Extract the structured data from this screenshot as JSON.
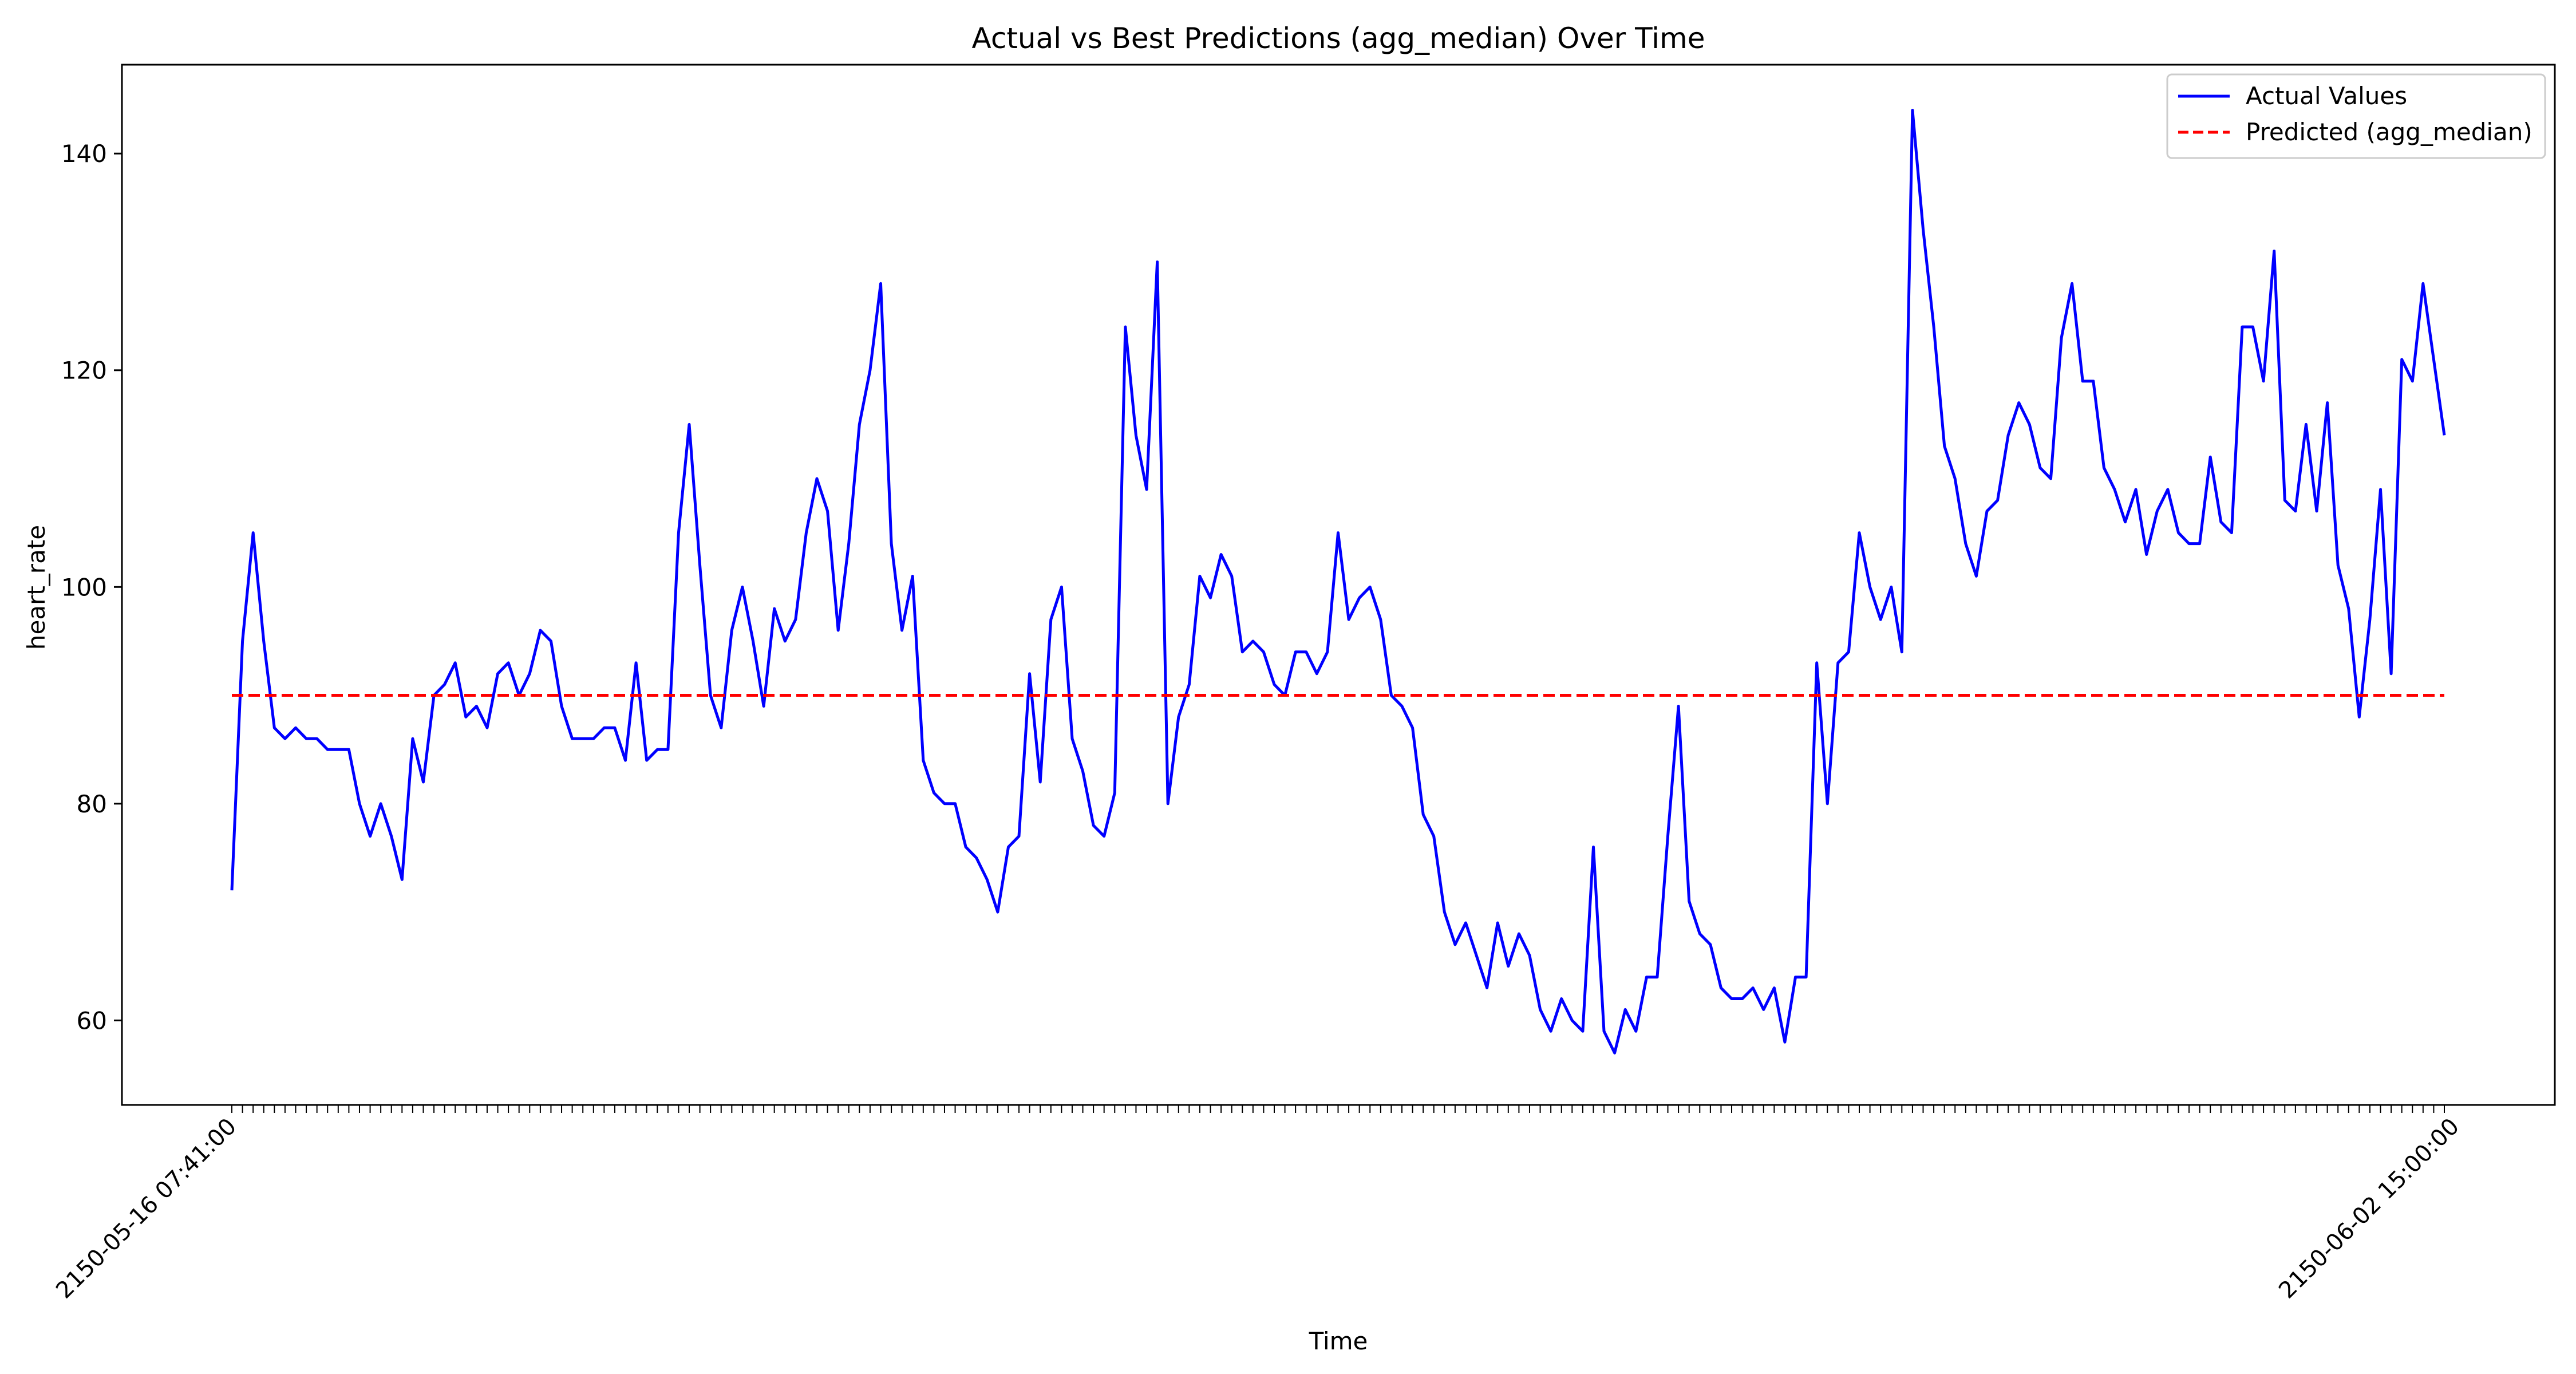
{
  "chart_data": {
    "type": "line",
    "title": "Actual vs Best Predictions (agg_median) Over Time",
    "xlabel": "Time",
    "ylabel": "heart_rate",
    "ylim": [
      52.2,
      148.2
    ],
    "yticks": [
      60,
      80,
      100,
      120,
      140
    ],
    "x_tick_labels_visible": {
      "first": "2150-05-16 07:41:00",
      "last": "2150-06-02 15:00:00"
    },
    "legend_position": "top-right",
    "grid": false,
    "series": [
      {
        "name": "Actual Values",
        "color": "#0000ff",
        "style": "solid",
        "values": [
          72,
          95,
          105,
          95,
          87,
          86,
          87,
          86,
          86,
          85,
          85,
          85,
          80,
          77,
          80,
          77,
          73,
          86,
          82,
          90,
          91,
          93,
          88,
          89,
          87,
          92,
          93,
          90,
          92,
          96,
          95,
          89,
          86,
          86,
          86,
          87,
          87,
          84,
          93,
          84,
          85,
          85,
          105,
          115,
          102,
          90,
          87,
          96,
          100,
          95,
          89,
          98,
          95,
          97,
          105,
          110,
          107,
          96,
          104,
          115,
          120,
          128,
          104,
          96,
          101,
          84,
          81,
          80,
          80,
          76,
          75,
          73,
          70,
          76,
          77,
          92,
          82,
          97,
          100,
          86,
          83,
          78,
          77,
          81,
          124,
          114,
          109,
          130,
          80,
          88,
          91,
          101,
          99,
          103,
          101,
          94,
          95,
          94,
          91,
          90,
          94,
          94,
          92,
          94,
          105,
          97,
          99,
          100,
          97,
          90,
          89,
          87,
          79,
          77,
          70,
          67,
          69,
          66,
          63,
          69,
          65,
          68,
          66,
          61,
          59,
          62,
          60,
          59,
          76,
          59,
          57,
          61,
          59,
          64,
          64,
          77,
          89,
          71,
          68,
          67,
          63,
          62,
          62,
          63,
          61,
          63,
          58,
          64,
          64,
          93,
          80,
          93,
          94,
          105,
          100,
          97,
          100,
          94,
          144,
          133,
          124,
          113,
          110,
          104,
          101,
          107,
          108,
          114,
          117,
          115,
          111,
          110,
          123,
          128,
          119,
          119,
          111,
          109,
          106,
          109,
          103,
          107,
          109,
          105,
          104,
          104,
          112,
          106,
          105,
          124,
          124,
          119,
          131,
          108,
          107,
          115,
          107,
          117,
          102,
          98,
          88,
          97,
          109,
          92,
          121,
          119,
          128,
          121,
          114
        ]
      },
      {
        "name": "Predicted (agg_median)",
        "color": "#ff0000",
        "style": "dashed",
        "constant": 90
      }
    ]
  }
}
